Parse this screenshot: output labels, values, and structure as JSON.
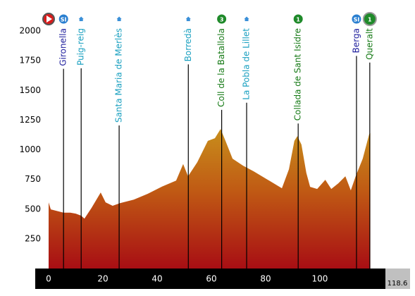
{
  "chart_data": {
    "type": "area",
    "x": [
      0,
      0.8,
      5.5,
      8,
      10,
      12,
      13.2,
      15.8,
      19.2,
      21,
      23.6,
      26.2,
      31.4,
      36.6,
      41.8,
      47,
      49.6,
      51.4,
      54.8,
      58.7,
      61.3,
      63.4,
      65.2,
      67.8,
      71.7,
      75.6,
      80.8,
      86,
      88.6,
      90.6,
      91.7,
      93.2,
      95,
      96.4,
      99,
      102,
      104.2,
      106.8,
      109.4,
      111.4,
      113.2,
      115.8,
      118.2,
      118.6
    ],
    "values": [
      557,
      498,
      470,
      470,
      462,
      445,
      420,
      510,
      640,
      557,
      528,
      550,
      580,
      630,
      690,
      740,
      880,
      777,
      895,
      1075,
      1097,
      1175,
      1075,
      925,
      866,
      818,
      747,
      676,
      836,
      1075,
      1115,
      1044,
      806,
      688,
      670,
      747,
      670,
      717,
      777,
      658,
      777,
      925,
      1133,
      1140
    ],
    "xlim": [
      0,
      118.6
    ],
    "ylim": [
      0,
      2000
    ],
    "xticks": [
      0,
      20,
      40,
      60,
      80,
      100
    ],
    "yticks": [
      250,
      500,
      750,
      1000,
      1250,
      1500,
      1750,
      2000
    ],
    "total_distance": 118.6,
    "waypoints": [
      {
        "name": "Gironella",
        "km": 5.5,
        "color": "#1c1c9c",
        "icon": "badge",
        "badge": "SI",
        "badge_color": "#2a7fd0"
      },
      {
        "name": "Puig-reig",
        "km": 12,
        "color": "#1aa0c0",
        "icon": "house"
      },
      {
        "name": "Santa Maria de Merlès",
        "km": 26,
        "color": "#1aa0c0",
        "icon": "house"
      },
      {
        "name": "Borredà",
        "km": 51.5,
        "color": "#1aa0c0",
        "icon": "house"
      },
      {
        "name": "Coll de la Batallola",
        "km": 63.8,
        "color": "#167a16",
        "icon": "badge",
        "badge": "3",
        "badge_color": "#1f8a2a"
      },
      {
        "name": "La Pobla de Lillet",
        "km": 73,
        "color": "#1aa0c0",
        "icon": "house"
      },
      {
        "name": "Collada de Sant Isidre",
        "km": 92,
        "color": "#167a16",
        "icon": "badge",
        "badge": "1",
        "badge_color": "#1f8a2a"
      },
      {
        "name": "Berga",
        "km": 113.5,
        "color": "#1c1c9c",
        "icon": "badge",
        "badge": "SI",
        "badge_color": "#2a7fd0"
      },
      {
        "name": "Queralt",
        "km": 118.4,
        "color": "#167a16",
        "icon": "badge",
        "badge": "1",
        "badge_color": "#1f8a2a"
      }
    ]
  }
}
